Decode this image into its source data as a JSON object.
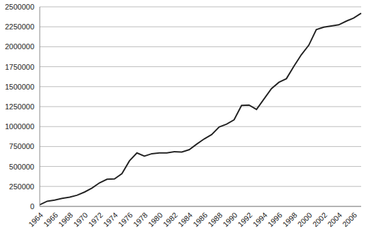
{
  "chart_data": {
    "type": "line",
    "categories": [
      "1964",
      null,
      "1966",
      null,
      "1968",
      null,
      "1970",
      null,
      "1972",
      null,
      "1974",
      null,
      "1976",
      null,
      "1978",
      null,
      "1980",
      null,
      "1982",
      null,
      "1984",
      null,
      "1986",
      null,
      "1988",
      null,
      "1990",
      null,
      "1992",
      null,
      "1994",
      null,
      "1996",
      null,
      "1998",
      null,
      "2000",
      null,
      "2002",
      null,
      "2004",
      null,
      "2006",
      null
    ],
    "values": [
      20000,
      65000,
      80000,
      100000,
      115000,
      140000,
      180000,
      230000,
      295000,
      340000,
      345000,
      410000,
      570000,
      670000,
      630000,
      660000,
      670000,
      670000,
      685000,
      680000,
      710000,
      780000,
      845000,
      900000,
      995000,
      1030000,
      1085000,
      1265000,
      1270000,
      1215000,
      1345000,
      1475000,
      1555000,
      1600000,
      1755000,
      1900000,
      2020000,
      2215000,
      2245000,
      2260000,
      2275000,
      2320000,
      2360000,
      2420000
    ],
    "color": "#222222",
    "ylim": [
      0,
      2500000
    ],
    "yticks": [
      0,
      250000,
      500000,
      750000,
      1000000,
      1250000,
      1500000,
      1750000,
      2000000,
      2250000,
      2500000
    ],
    "grid": true
  }
}
